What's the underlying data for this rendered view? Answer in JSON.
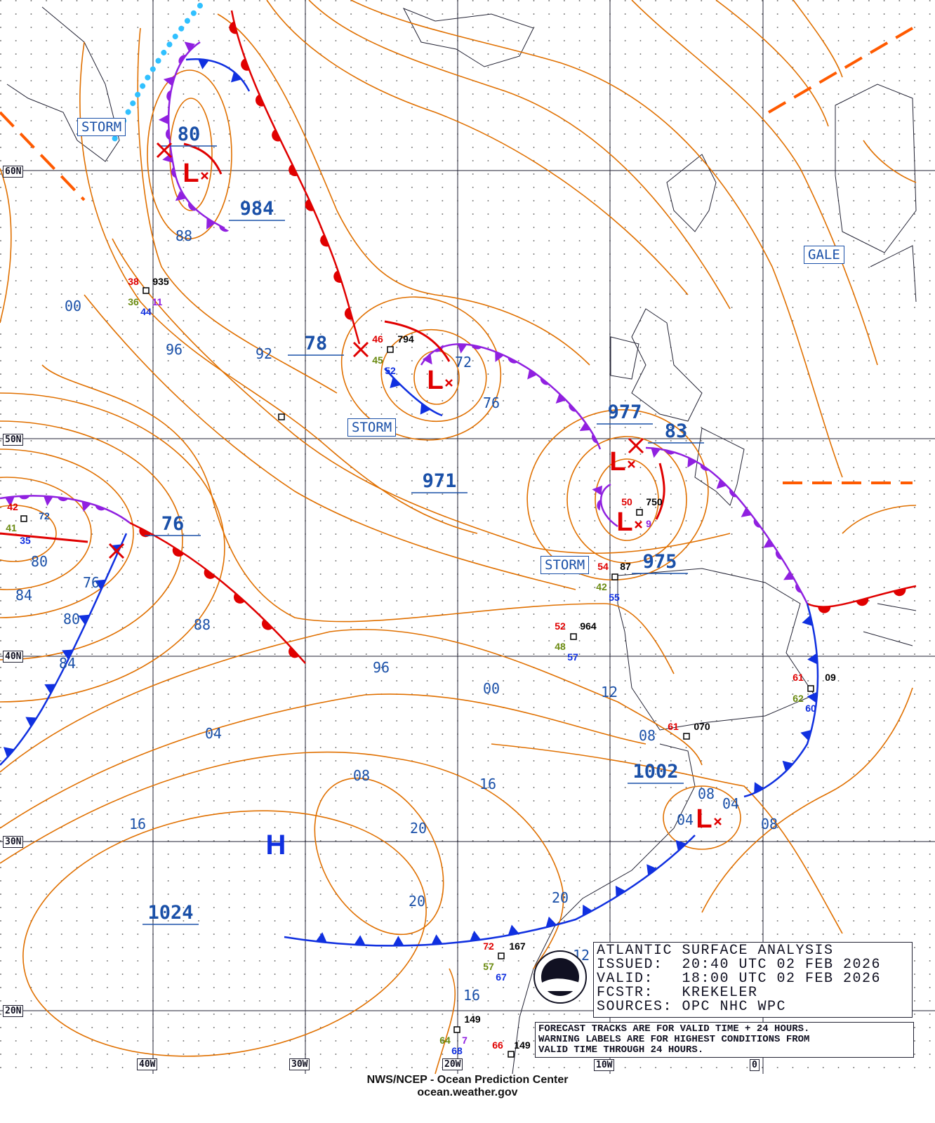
{
  "title_box": {
    "title": "ATLANTIC SURFACE ANALYSIS",
    "issued": "ISSUED:  20:40 UTC 02 FEB 2026",
    "valid": "VALID:   18:00 UTC 02 FEB 2026",
    "forecaster": "FCSTR:   KREKELER",
    "sources": "SOURCES: OPC NHC WPC"
  },
  "notes": [
    "FORECAST TRACKS ARE FOR VALID TIME + 24 HOURS.",
    "WARNING LABELS ARE FOR HIGHEST CONDITIONS FROM",
    "VALID TIME THROUGH 24 HOURS."
  ],
  "footer": {
    "line1": "NWS/NCEP - Ocean Prediction Center",
    "line2": "ocean.weather.gov"
  },
  "latitudes": [
    "60N",
    "50N",
    "40N",
    "30N",
    "20N"
  ],
  "longitudes": [
    "40W",
    "30W",
    "20W",
    "10W",
    "0"
  ],
  "warnings": [
    "STORM",
    "STORM",
    "STORM",
    "GALE"
  ],
  "pressure_centers": [
    "984",
    "971",
    "977",
    "975",
    "1002",
    "1024",
    "80",
    "78",
    "83",
    "76"
  ],
  "isobar_labels": [
    "88",
    "00",
    "96",
    "92",
    "72",
    "76",
    "80",
    "84",
    "76",
    "80",
    "84",
    "88",
    "96",
    "00",
    "12",
    "08",
    "04",
    "08",
    "16",
    "20",
    "16",
    "20",
    "20",
    "16",
    "04",
    "08",
    "04",
    "08",
    "20",
    "16",
    "12"
  ],
  "high_label": "H",
  "low_symbol": "L",
  "station_values": [
    "38",
    "935",
    "36",
    "11",
    "44",
    "46",
    "794",
    "45",
    "52",
    "42",
    "72",
    "41",
    "35",
    "50",
    "750",
    "9",
    "54",
    "87",
    "42",
    "55",
    "52",
    "964",
    "48",
    "57",
    "61",
    "09",
    "62",
    "60",
    "61",
    "070",
    "72",
    "167",
    "57",
    "67",
    "149",
    "64",
    "7",
    "68",
    "66",
    "149"
  ],
  "colors": {
    "isobar": "#e07000",
    "cold_front": "#1030e0",
    "warm_front": "#e00000",
    "occluded_front": "#9020e0",
    "label": "#1a50a8"
  }
}
